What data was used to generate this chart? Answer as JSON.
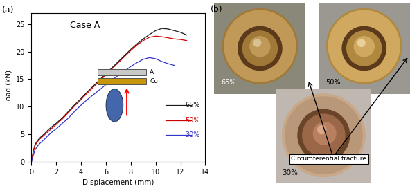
{
  "title_a": "(a)",
  "title_b": "(b)",
  "case_label": "Case A",
  "xlabel": "Displacement (mm)",
  "ylabel": "Load (kN)",
  "xlim": [
    0,
    14
  ],
  "ylim": [
    0,
    27
  ],
  "xticks": [
    0,
    2,
    4,
    6,
    8,
    10,
    12,
    14
  ],
  "yticks": [
    0,
    5,
    10,
    15,
    20,
    25
  ],
  "legend_labels": [
    "65%",
    "50%",
    "30%"
  ],
  "line_colors": [
    "#1a1a1a",
    "#cc0000",
    "#3333cc"
  ],
  "curve_65_x": [
    0.0,
    0.15,
    0.3,
    0.5,
    0.7,
    1.0,
    1.3,
    1.6,
    2.0,
    2.5,
    3.0,
    3.5,
    4.0,
    4.5,
    5.0,
    5.5,
    6.0,
    6.5,
    7.0,
    7.5,
    8.0,
    8.5,
    9.0,
    9.5,
    10.0,
    10.5,
    11.0,
    11.5,
    12.0,
    12.5
  ],
  "curve_65_y": [
    0.0,
    2.0,
    3.2,
    3.9,
    4.4,
    5.0,
    5.7,
    6.3,
    7.0,
    8.0,
    9.2,
    10.4,
    11.5,
    12.7,
    13.8,
    14.9,
    16.0,
    17.1,
    18.2,
    19.3,
    20.4,
    21.4,
    22.3,
    23.1,
    23.8,
    24.2,
    24.1,
    23.8,
    23.5,
    23.0
  ],
  "curve_50_x": [
    0.0,
    0.15,
    0.3,
    0.5,
    0.7,
    1.0,
    1.3,
    1.6,
    2.0,
    2.5,
    3.0,
    3.5,
    4.0,
    4.5,
    5.0,
    5.5,
    6.0,
    6.5,
    7.0,
    7.5,
    8.0,
    8.5,
    9.0,
    9.5,
    10.0,
    10.5,
    11.0,
    11.5,
    12.0,
    12.5
  ],
  "curve_50_y": [
    0.0,
    1.8,
    3.0,
    3.7,
    4.2,
    4.8,
    5.4,
    6.0,
    6.8,
    7.8,
    9.0,
    10.2,
    11.3,
    12.5,
    13.6,
    14.7,
    15.8,
    16.9,
    18.0,
    19.1,
    20.2,
    21.2,
    22.0,
    22.6,
    22.8,
    22.7,
    22.5,
    22.3,
    22.2,
    22.0
  ],
  "curve_30_x": [
    0.0,
    0.15,
    0.3,
    0.5,
    0.7,
    1.0,
    1.3,
    1.6,
    2.0,
    2.5,
    3.0,
    3.5,
    4.0,
    4.5,
    5.0,
    5.5,
    6.0,
    6.5,
    7.0,
    7.5,
    8.0,
    8.5,
    9.0,
    9.5,
    10.0,
    10.5,
    11.0,
    11.5
  ],
  "curve_30_y": [
    0.0,
    1.2,
    2.2,
    2.9,
    3.4,
    4.0,
    4.7,
    5.3,
    6.0,
    7.0,
    8.0,
    9.2,
    10.3,
    11.3,
    12.2,
    13.1,
    14.0,
    14.9,
    15.7,
    16.5,
    17.3,
    18.0,
    18.6,
    18.9,
    18.7,
    18.2,
    17.8,
    17.5
  ],
  "inset_al_color": "#c8c8c8",
  "inset_cu_color": "#c8960a",
  "annotation_text": "Circumferential fracture",
  "label_65": "65%",
  "label_50": "50%",
  "label_30": "30%",
  "photo_bg_65": "#a09070",
  "photo_bg_50": "#b8a080",
  "photo_bg_30": "#c8b898",
  "photo_ring_65": "#7a6040",
  "photo_ring_50": "#8a7050",
  "photo_center_65": "#b89060",
  "photo_center_50": "#c8a070"
}
